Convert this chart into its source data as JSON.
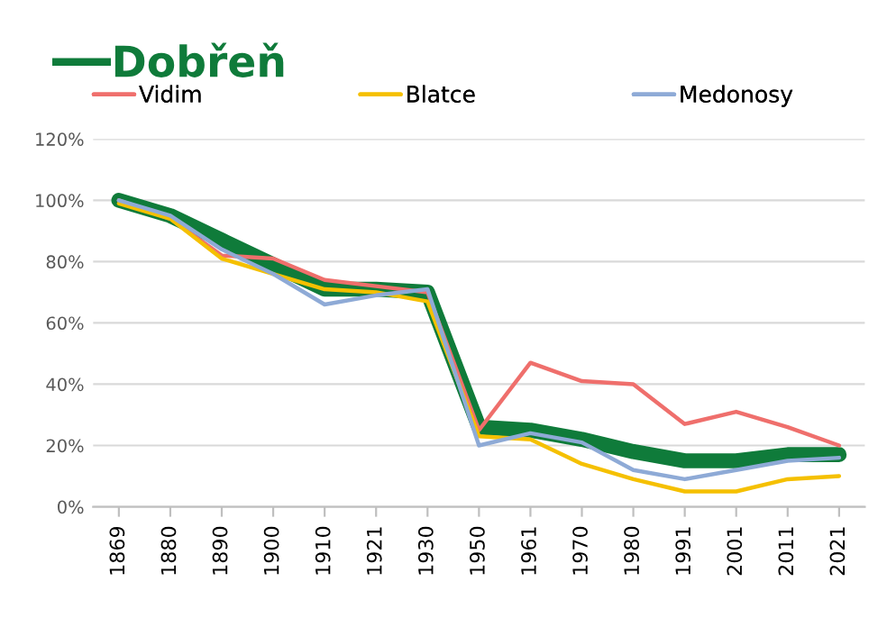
{
  "chart_data": {
    "type": "line",
    "categories": [
      "1869",
      "1880",
      "1890",
      "1900",
      "1910",
      "1921",
      "1930",
      "1950",
      "1961",
      "1970",
      "1980",
      "1991",
      "2001",
      "2011",
      "2021"
    ],
    "series": [
      {
        "name": "Vidim",
        "color": "#ef6f6c",
        "values": [
          100,
          94,
          82,
          81,
          74,
          72,
          70,
          25,
          47,
          41,
          40,
          27,
          31,
          26,
          20
        ]
      },
      {
        "name": "Blatce",
        "color": "#f5c000",
        "values": [
          99,
          94,
          81,
          76,
          71,
          70,
          67,
          23,
          22,
          14,
          9,
          5,
          5,
          9,
          10
        ]
      },
      {
        "name": "Medonosy",
        "color": "#8eaad6",
        "values": [
          100,
          95,
          84,
          76,
          66,
          69,
          71,
          20,
          24,
          21,
          12,
          9,
          12,
          15,
          16
        ]
      },
      {
        "name": "Dobřeň",
        "color": "#0f7b3a",
        "values": [
          100,
          95,
          87,
          79,
          71,
          71,
          70,
          26,
          25,
          22,
          18,
          15,
          15,
          17,
          17
        ]
      }
    ],
    "ylim": [
      0,
      120
    ],
    "yticks": [
      {
        "value": 0,
        "label": "0%"
      },
      {
        "value": 20,
        "label": "20%"
      },
      {
        "value": 40,
        "label": "40%"
      },
      {
        "value": 60,
        "label": "60%"
      },
      {
        "value": 80,
        "label": "80%"
      },
      {
        "value": 100,
        "label": "100%"
      },
      {
        "value": 120,
        "label": "120%"
      }
    ],
    "grid": "y",
    "legend": "top",
    "line_style": "solid",
    "marker": "none"
  }
}
